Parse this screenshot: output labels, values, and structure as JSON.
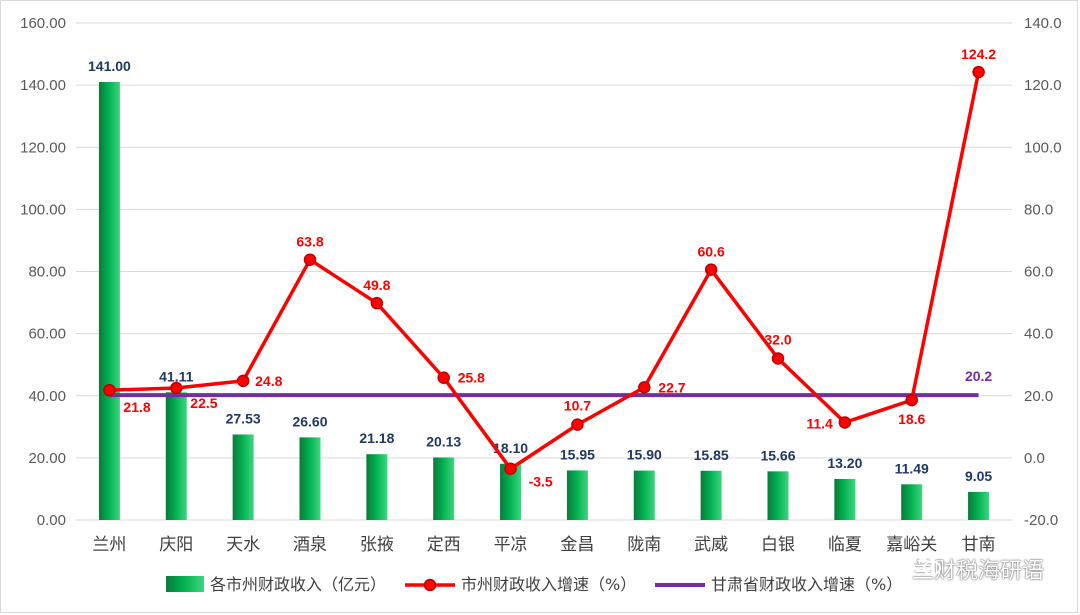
{
  "chart_data": {
    "type": "bar",
    "categories": [
      "兰州",
      "庆阳",
      "天水",
      "酒泉",
      "张掖",
      "定西",
      "平凉",
      "金昌",
      "陇南",
      "武威",
      "白银",
      "临夏",
      "嘉峪关",
      "甘南"
    ],
    "series": [
      {
        "name": "各市州财政收入（亿元）",
        "type": "bar",
        "axis": "left",
        "color": "#00b050",
        "values": [
          141.0,
          41.11,
          27.53,
          26.6,
          21.18,
          20.13,
          18.1,
          15.95,
          15.9,
          15.85,
          15.66,
          13.2,
          11.49,
          9.05
        ],
        "labels": [
          "141.00",
          "41.11",
          "27.53",
          "26.60",
          "21.18",
          "20.13",
          "18.10",
          "15.95",
          "15.90",
          "15.85",
          "15.66",
          "13.20",
          "11.49",
          "9.05"
        ]
      },
      {
        "name": "市州财政收入增速（%）",
        "type": "line",
        "axis": "right",
        "color": "#ff0000",
        "values": [
          21.8,
          22.5,
          24.8,
          63.8,
          49.8,
          25.8,
          -3.5,
          10.7,
          22.7,
          60.6,
          32.0,
          11.4,
          18.6,
          124.2
        ],
        "labels": [
          "21.8",
          "22.5",
          "24.8",
          "63.8",
          "49.8",
          "25.8",
          "-3.5",
          "10.7",
          "22.7",
          "60.6",
          "32.0",
          "11.4",
          "18.6",
          "124.2"
        ]
      },
      {
        "name": "甘肃省财政收入增速（%）",
        "type": "line",
        "axis": "right",
        "color": "#7030a0",
        "values": [
          20.2,
          20.2,
          20.2,
          20.2,
          20.2,
          20.2,
          20.2,
          20.2,
          20.2,
          20.2,
          20.2,
          20.2,
          20.2,
          20.2
        ],
        "end_label": "20.2"
      }
    ],
    "y_left": {
      "min": 0,
      "max": 160,
      "step": 20,
      "ticks": [
        "0.00",
        "20.00",
        "40.00",
        "60.00",
        "80.00",
        "100.00",
        "120.00",
        "140.00",
        "160.00"
      ]
    },
    "y_right": {
      "min": -20,
      "max": 140,
      "step": 20,
      "ticks": [
        "-20.0",
        "0.0",
        "20.0",
        "40.0",
        "60.0",
        "80.0",
        "100.0",
        "120.0",
        "140.0"
      ]
    },
    "grid": true,
    "legend_position": "bottom"
  },
  "watermark": {
    "text": "兰财税海研语",
    "icon": "wechat-icon"
  }
}
